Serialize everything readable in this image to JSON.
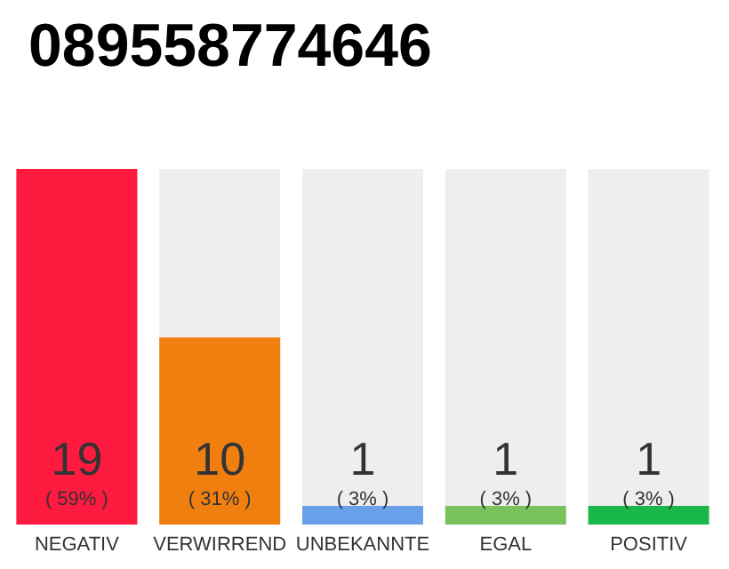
{
  "chart_data": {
    "type": "bar",
    "title": "089558774646",
    "categories": [
      "NEGATIV",
      "VERWIRREND",
      "UNBEKANNTE",
      "EGAL",
      "POSITIV"
    ],
    "values": [
      19,
      10,
      1,
      1,
      1
    ],
    "colors": [
      "#ff1a3f",
      "#f07f10",
      "#6a9fea",
      "#7ac35c",
      "#1ab84a"
    ],
    "value_labels": [
      "19\n( 59% )",
      "10\n( 31% )",
      "1\n( 3% )",
      "1\n( 3% )",
      "1\n( 3% )"
    ]
  }
}
